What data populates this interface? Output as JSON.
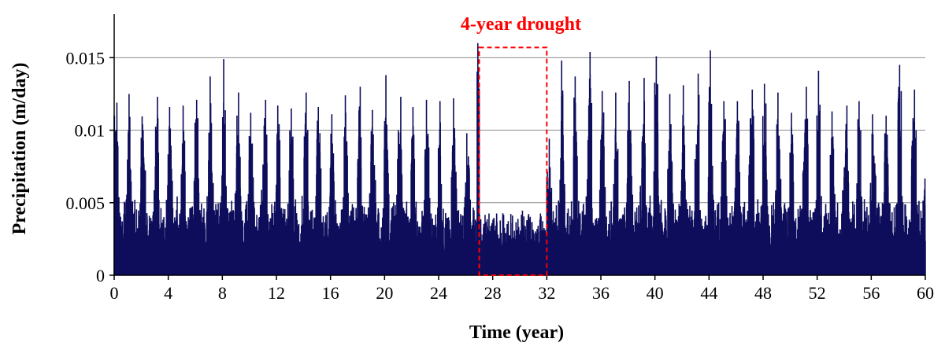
{
  "chart_data": {
    "type": "line",
    "xlabel": "Time (year)",
    "ylabel": "Precipitation (m/day)",
    "xlim": [
      0,
      60
    ],
    "ylim": [
      0,
      0.018
    ],
    "x_ticks": [
      "0",
      "4",
      "8",
      "12",
      "16",
      "20",
      "24",
      "28",
      "32",
      "36",
      "40",
      "44",
      "48",
      "52",
      "56",
      "60"
    ],
    "x_tick_values": [
      0,
      4,
      8,
      12,
      16,
      20,
      24,
      28,
      32,
      36,
      40,
      44,
      48,
      52,
      56,
      60
    ],
    "y_ticks": [
      "0",
      "0.005",
      "0.01",
      "0.015"
    ],
    "y_tick_values": [
      0,
      0.005,
      0.01,
      0.015
    ],
    "grid": "horizontal",
    "series": [
      {
        "color": "#0d0d5c",
        "sampling": "daily, estimated",
        "annual_peak_years": [
          0.2,
          1.1,
          2.1,
          3.2,
          4.1,
          5.1,
          6.1,
          7.1,
          8.1,
          9.2,
          10.1,
          11.2,
          12.1,
          13.1,
          14.2,
          15.1,
          16.1,
          17.1,
          18.2,
          19.1,
          20.1,
          21.2,
          22.1,
          23.1,
          24.1,
          25.1,
          26.9,
          33.1,
          34.1,
          35.2,
          36.1,
          37.1,
          38.1,
          39.2,
          40.1,
          41.1,
          42.1,
          43.2,
          44.1,
          45.1,
          46.1,
          47.2,
          48.1,
          49.1,
          50.1,
          51.2,
          52.1,
          53.1,
          54.2,
          55.1,
          56.1,
          57.1,
          58.1,
          59.2
        ],
        "annual_peak_values": [
          0.0119,
          0.0125,
          0.0104,
          0.0123,
          0.0116,
          0.0117,
          0.0121,
          0.0137,
          0.0149,
          0.0126,
          0.0112,
          0.0121,
          0.0117,
          0.0115,
          0.0126,
          0.0116,
          0.0111,
          0.0124,
          0.013,
          0.0114,
          0.0138,
          0.0123,
          0.0116,
          0.0121,
          0.012,
          0.0122,
          0.016,
          0.0148,
          0.0137,
          0.0154,
          0.0127,
          0.0126,
          0.0134,
          0.0136,
          0.0151,
          0.0125,
          0.0131,
          0.0139,
          0.0155,
          0.012,
          0.012,
          0.0128,
          0.0132,
          0.0126,
          0.0112,
          0.013,
          0.0141,
          0.0113,
          0.0117,
          0.012,
          0.0111,
          0.011,
          0.0145,
          0.0128
        ],
        "drought_max": 0.0048
      }
    ],
    "annotations": [
      {
        "text": "4-year drought",
        "color": "#ff0000",
        "x_start": 27,
        "x_end": 32,
        "y_top": 0.0157
      }
    ]
  }
}
